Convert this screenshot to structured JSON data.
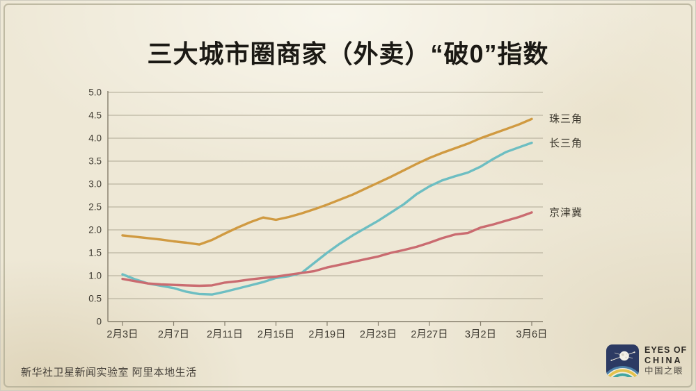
{
  "header": {
    "title": "三大城市圈商家（外卖）“破0”指数"
  },
  "chart_data": {
    "type": "line",
    "title": "三大城市圈商家（外卖）“破0”指数",
    "x_start": "2月3日",
    "x_end": "3月6日",
    "x_interval": "daily",
    "n_points": 33,
    "x_tick_labels": [
      "2月3日",
      "2月7日",
      "2月11日",
      "2月15日",
      "2月19日",
      "2月23日",
      "2月27日",
      "3月2日",
      "3月6日"
    ],
    "y_tick_labels": [
      "5.0",
      "4.5",
      "4.0",
      "3.5",
      "3.0",
      "2.5",
      "2.0",
      "1.5",
      "1.0",
      "0.5",
      "0"
    ],
    "ylim": [
      0,
      5
    ],
    "grid": "horizontal",
    "legend_position": "right-of-line-ends",
    "series": [
      {
        "name": "珠三角",
        "color": "#d09a41",
        "values": [
          1.88,
          1.85,
          1.82,
          1.79,
          1.75,
          1.72,
          1.68,
          1.78,
          1.92,
          2.05,
          2.17,
          2.27,
          2.22,
          2.28,
          2.36,
          2.45,
          2.55,
          2.66,
          2.77,
          2.9,
          3.03,
          3.16,
          3.3,
          3.44,
          3.57,
          3.68,
          3.78,
          3.88,
          4.0,
          4.1,
          4.2,
          4.3,
          4.42
        ]
      },
      {
        "name": "长三角",
        "color": "#6dbec2",
        "values": [
          1.03,
          0.92,
          0.83,
          0.78,
          0.73,
          0.65,
          0.6,
          0.59,
          0.65,
          0.72,
          0.79,
          0.86,
          0.95,
          0.99,
          1.06,
          1.28,
          1.5,
          1.7,
          1.88,
          2.04,
          2.2,
          2.38,
          2.56,
          2.78,
          2.95,
          3.08,
          3.17,
          3.25,
          3.38,
          3.55,
          3.7,
          3.8,
          3.9
        ]
      },
      {
        "name": "京津冀",
        "color": "#ca6b70",
        "values": [
          0.93,
          0.88,
          0.83,
          0.81,
          0.8,
          0.79,
          0.78,
          0.79,
          0.85,
          0.88,
          0.92,
          0.95,
          0.98,
          1.02,
          1.06,
          1.1,
          1.18,
          1.24,
          1.3,
          1.36,
          1.42,
          1.5,
          1.56,
          1.63,
          1.72,
          1.82,
          1.9,
          1.93,
          2.05,
          2.12,
          2.2,
          2.28,
          2.38
        ]
      }
    ]
  },
  "footer": {
    "credits": "新华社卫星新闻实验室  阿里本地生活"
  },
  "logo": {
    "line1": "EYES OF",
    "line2": "CHINA",
    "line3": "中国之眼",
    "icon": "satellite-over-rainbow-arcs",
    "square_color": "#2c3a63",
    "arc_colors": [
      "#4e82aa",
      "#e3c24d",
      "#42a5a0"
    ]
  },
  "colors": {
    "background": "#eee8d6",
    "frame_border": "#b6b29a",
    "gridline": "#aea894",
    "axis": "#847d6b",
    "tick_text": "#3e3a31",
    "title_text": "#1b1914",
    "footer_text": "#46413a"
  }
}
